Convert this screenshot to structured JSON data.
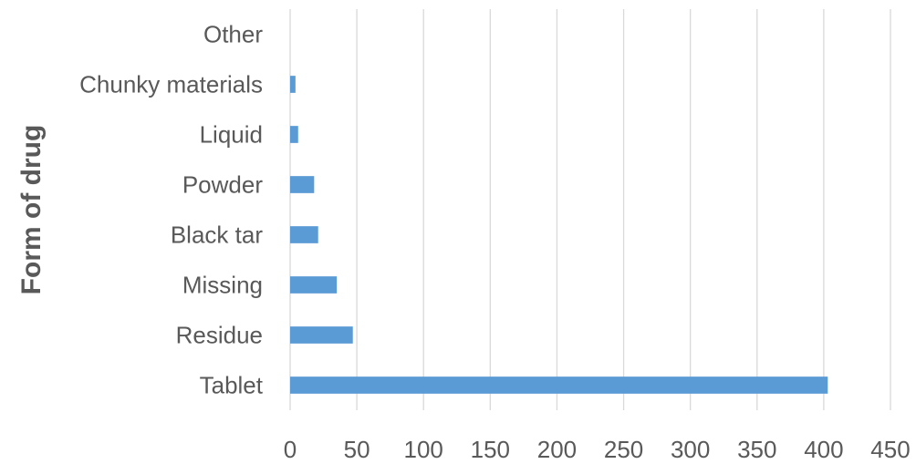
{
  "chart_data": {
    "type": "bar",
    "orientation": "horizontal",
    "title": "",
    "xlabel": "",
    "ylabel": "Form of drug",
    "categories": [
      "Other",
      "Chunky materials",
      "Liquid",
      "Powder",
      "Black tar",
      "Missing",
      "Residue",
      "Tablet"
    ],
    "values": [
      0,
      4,
      6,
      18,
      21,
      35,
      47,
      403
    ],
    "xlim": [
      0,
      450
    ],
    "xticks": [
      0,
      50,
      100,
      150,
      200,
      250,
      300,
      350,
      400,
      450
    ],
    "grid": true,
    "legend": "none",
    "bar_color": "#5b9bd5"
  }
}
